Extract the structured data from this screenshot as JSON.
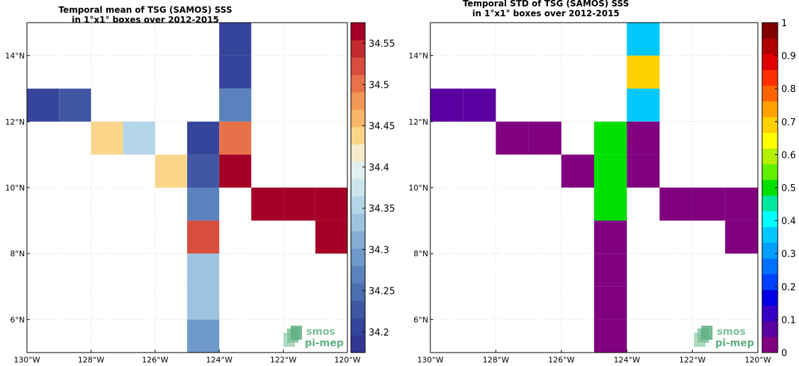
{
  "chart_data": [
    {
      "type": "heatmap",
      "title_lines": [
        "Temporal mean of TSG (SAMOS) SSS",
        "in 1°x1° boxes over 2012-2015"
      ],
      "xlim": [
        -130,
        -120
      ],
      "ylim": [
        5,
        15
      ],
      "x_ticks": [
        -130,
        -128,
        -126,
        -124,
        -122,
        -120
      ],
      "x_tick_labels": [
        "130°W",
        "128°W",
        "126°W",
        "124°W",
        "122°W",
        "120°W"
      ],
      "y_ticks": [
        6,
        8,
        10,
        12,
        14
      ],
      "y_tick_labels": [
        "6°N",
        "8°N",
        "10°N",
        "12°N",
        "14°N"
      ],
      "grid": true,
      "colorbar": {
        "min": 34.175,
        "max": 34.575,
        "step": 0.025,
        "tick_values": [
          34.2,
          34.25,
          34.3,
          34.35,
          34.4,
          34.45,
          34.5,
          34.55
        ],
        "tick_labels": [
          "34.2",
          "34.25",
          "34.3",
          "34.35",
          "34.4",
          "34.45",
          "34.5",
          "34.55"
        ],
        "colors": [
          "#313695",
          "#36459c",
          "#4057a4",
          "#4a6eb0",
          "#5b82bc",
          "#6f99c8",
          "#86aed4",
          "#9cc4df",
          "#b3d6e8",
          "#cbe6ef",
          "#e3f0f1",
          "#f4eccb",
          "#fbd68a",
          "#f8b66a",
          "#f29755",
          "#e7724a",
          "#d84d3d",
          "#c32a2f",
          "#a50026"
        ]
      },
      "cells": [
        {
          "lon": -124,
          "lat": 14,
          "value": 34.21
        },
        {
          "lon": -124,
          "lat": 13,
          "value": 34.21
        },
        {
          "lon": -124,
          "lat": 12,
          "value": 34.27
        },
        {
          "lon": -130,
          "lat": 12,
          "value": 34.2
        },
        {
          "lon": -129,
          "lat": 12,
          "value": 34.22
        },
        {
          "lon": -128,
          "lat": 11,
          "value": 34.44
        },
        {
          "lon": -127,
          "lat": 11,
          "value": 34.36
        },
        {
          "lon": -125,
          "lat": 11,
          "value": 34.2
        },
        {
          "lon": -124,
          "lat": 11,
          "value": 34.5
        },
        {
          "lon": -126,
          "lat": 10,
          "value": 34.44
        },
        {
          "lon": -125,
          "lat": 10,
          "value": 34.22
        },
        {
          "lon": -124,
          "lat": 10,
          "value": 34.57
        },
        {
          "lon": -125,
          "lat": 9,
          "value": 34.26
        },
        {
          "lon": -123,
          "lat": 9,
          "value": 34.57
        },
        {
          "lon": -122,
          "lat": 9,
          "value": 34.57
        },
        {
          "lon": -121,
          "lat": 9,
          "value": 34.57
        },
        {
          "lon": -125,
          "lat": 8,
          "value": 34.53
        },
        {
          "lon": -121,
          "lat": 8,
          "value": 34.57
        },
        {
          "lon": -125,
          "lat": 7,
          "value": 34.33
        },
        {
          "lon": -125,
          "lat": 6,
          "value": 34.33
        },
        {
          "lon": -125,
          "lat": 5,
          "value": 34.3
        }
      ],
      "logo": {
        "line1": "smos",
        "line2": "pi-mep"
      }
    },
    {
      "type": "heatmap",
      "title_lines": [
        "Temporal STD of TSG (SAMOS) SSS",
        "in 1°x1° boxes over 2012-2015"
      ],
      "xlim": [
        -130,
        -120
      ],
      "ylim": [
        5,
        15
      ],
      "x_ticks": [
        -130,
        -128,
        -126,
        -124,
        -122,
        -120
      ],
      "x_tick_labels": [
        "130°W",
        "128°W",
        "126°W",
        "124°W",
        "122°W",
        "120°W"
      ],
      "y_ticks": [
        6,
        8,
        10,
        12,
        14
      ],
      "y_tick_labels": [
        "6°N",
        "8°N",
        "10°N",
        "12°N",
        "14°N"
      ],
      "grid": true,
      "colorbar": {
        "min": 0,
        "max": 1,
        "step": 0.05,
        "tick_values": [
          0,
          0.1,
          0.2,
          0.3,
          0.4,
          0.5,
          0.6,
          0.7,
          0.8,
          0.9,
          1
        ],
        "tick_labels": [
          "0",
          "0.1",
          "0.2",
          "0.3",
          "0.4",
          "0.5",
          "0.6",
          "0.7",
          "0.8",
          "0.9",
          "1"
        ],
        "colors": [
          "#800080",
          "#5a00a0",
          "#3500c8",
          "#0000e6",
          "#0040ff",
          "#0070ff",
          "#00a0ff",
          "#00c8ff",
          "#00ffff",
          "#00e8a0",
          "#00e000",
          "#60f000",
          "#b4f000",
          "#ffff00",
          "#ffd000",
          "#ffa000",
          "#ff6400",
          "#ff3000",
          "#e00000",
          "#b00000",
          "#800000"
        ]
      },
      "cells": [
        {
          "lon": -124,
          "lat": 14,
          "value": 0.38
        },
        {
          "lon": -124,
          "lat": 13,
          "value": 0.68
        },
        {
          "lon": -124,
          "lat": 12,
          "value": 0.38
        },
        {
          "lon": -130,
          "lat": 12,
          "value": 0.06
        },
        {
          "lon": -129,
          "lat": 12,
          "value": 0.06
        },
        {
          "lon": -128,
          "lat": 11,
          "value": 0.02
        },
        {
          "lon": -127,
          "lat": 11,
          "value": 0.02
        },
        {
          "lon": -126,
          "lat": 10,
          "value": 0.02
        },
        {
          "lon": -125,
          "lat": 11,
          "value": 0.52
        },
        {
          "lon": -125,
          "lat": 10,
          "value": 0.52
        },
        {
          "lon": -125,
          "lat": 9,
          "value": 0.52
        },
        {
          "lon": -124,
          "lat": 11,
          "value": 0.02
        },
        {
          "lon": -124,
          "lat": 10,
          "value": 0.02
        },
        {
          "lon": -123,
          "lat": 9,
          "value": 0.02
        },
        {
          "lon": -122,
          "lat": 9,
          "value": 0.02
        },
        {
          "lon": -121,
          "lat": 9,
          "value": 0.02
        },
        {
          "lon": -121,
          "lat": 8,
          "value": 0.02
        },
        {
          "lon": -125,
          "lat": 8,
          "value": 0.02
        },
        {
          "lon": -125,
          "lat": 7,
          "value": 0.02
        },
        {
          "lon": -125,
          "lat": 6,
          "value": 0.02
        },
        {
          "lon": -125,
          "lat": 5,
          "value": 0.02
        }
      ],
      "logo": {
        "line1": "smos",
        "line2": "pi-mep"
      }
    }
  ]
}
